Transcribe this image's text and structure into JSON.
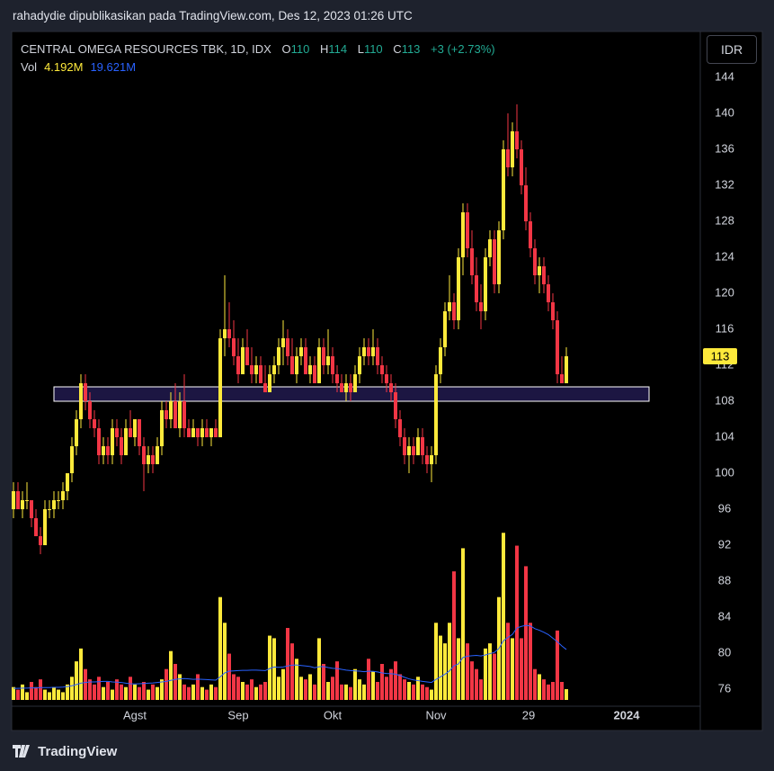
{
  "header": "rahadydie dipublikasikan pada TradingView.com, Des 12, 2023 01:26 UTC",
  "footer": "TradingView",
  "chart_data": {
    "type": "candlestick",
    "title": "CENTRAL OMEGA RESOURCES TBK, 1D, IDX",
    "ohlc_labels": [
      "O",
      "H",
      "L",
      "C"
    ],
    "change": "+3 (+2.73%)",
    "currency": "IDR",
    "up_color": "#fde93b",
    "down_color": "#f23645",
    "grid": false,
    "open": [
      96,
      98,
      96,
      97,
      97,
      95,
      93,
      92,
      96,
      96,
      97,
      97,
      98,
      100,
      103,
      106,
      110,
      108,
      106,
      105,
      102,
      103,
      102,
      105,
      104,
      102,
      105,
      104,
      106,
      103,
      101,
      102,
      101,
      103,
      107,
      106,
      108,
      105,
      108,
      105,
      104,
      105,
      104,
      105,
      104,
      105,
      104,
      115,
      116,
      115,
      113,
      111,
      114,
      112,
      111,
      112,
      110,
      109,
      111,
      112,
      114,
      115,
      113,
      111,
      113,
      114,
      111,
      112,
      110,
      114,
      112,
      113,
      111,
      110,
      109,
      110,
      109,
      111,
      113,
      114,
      113,
      114,
      112,
      111,
      110,
      109,
      106,
      104,
      102,
      103,
      102,
      104,
      102,
      101,
      102,
      111,
      114,
      118,
      119,
      117,
      124,
      129,
      125,
      122,
      119,
      118,
      124,
      126,
      121,
      127,
      136,
      134,
      138,
      136,
      132,
      128,
      125,
      122,
      123,
      121,
      119,
      117,
      111,
      110
    ],
    "high": [
      99,
      99,
      98,
      99,
      97,
      96,
      94,
      97,
      97,
      98,
      98,
      99,
      100,
      104,
      107,
      111,
      111,
      109,
      107,
      106,
      104,
      104,
      106,
      106,
      105,
      106,
      107,
      106,
      106,
      104,
      103,
      103,
      104,
      108,
      108,
      109,
      110,
      109,
      111,
      106,
      106,
      105,
      106,
      106,
      105,
      106,
      116,
      122,
      119,
      117,
      115,
      115,
      116,
      114,
      113,
      113,
      112,
      112,
      113,
      115,
      117,
      116,
      115,
      114,
      115,
      115,
      113,
      113,
      115,
      115,
      116,
      114,
      112,
      111,
      111,
      111,
      112,
      114,
      115,
      115,
      116,
      115,
      113,
      112,
      111,
      110,
      107,
      105,
      104,
      104,
      105,
      105,
      103,
      103,
      112,
      115,
      119,
      122,
      120,
      125,
      130,
      130,
      127,
      124,
      121,
      125,
      127,
      127,
      128,
      137,
      140,
      139,
      141,
      137,
      134,
      129,
      126,
      124,
      124,
      122,
      120,
      118,
      113,
      114
    ],
    "low": [
      95,
      96,
      95,
      96,
      94,
      93,
      91,
      92,
      95,
      95,
      96,
      96,
      97,
      99,
      102,
      105,
      107,
      105,
      104,
      101,
      101,
      101,
      101,
      103,
      101,
      102,
      104,
      103,
      102,
      98,
      100,
      100,
      101,
      102,
      105,
      105,
      105,
      104,
      104,
      104,
      104,
      103,
      103,
      104,
      103,
      104,
      104,
      113,
      114,
      112,
      110,
      111,
      112,
      110,
      110,
      110,
      109,
      109,
      110,
      111,
      112,
      112,
      111,
      110,
      112,
      111,
      110,
      110,
      110,
      111,
      111,
      110,
      109,
      109,
      108,
      108,
      109,
      110,
      112,
      112,
      112,
      111,
      110,
      109,
      108,
      105,
      103,
      101,
      100,
      101,
      102,
      101,
      100,
      99,
      101,
      110,
      113,
      117,
      116,
      116,
      122,
      124,
      121,
      118,
      116,
      117,
      123,
      120,
      120,
      126,
      133,
      133,
      135,
      131,
      127,
      124,
      121,
      120,
      120,
      118,
      116,
      110,
      110,
      110
    ],
    "close": [
      98,
      96,
      97,
      97,
      95,
      93,
      92,
      96,
      96,
      97,
      97,
      98,
      100,
      103,
      106,
      110,
      108,
      106,
      105,
      102,
      103,
      102,
      105,
      104,
      102,
      105,
      104,
      106,
      103,
      101,
      102,
      101,
      103,
      107,
      106,
      108,
      105,
      108,
      105,
      104,
      105,
      104,
      105,
      104,
      105,
      104,
      115,
      116,
      115,
      113,
      111,
      114,
      112,
      111,
      112,
      110,
      109,
      111,
      112,
      114,
      115,
      113,
      111,
      113,
      114,
      111,
      112,
      110,
      114,
      112,
      113,
      111,
      110,
      109,
      110,
      109,
      111,
      113,
      114,
      113,
      114,
      112,
      111,
      110,
      109,
      106,
      104,
      102,
      103,
      102,
      104,
      102,
      101,
      102,
      111,
      114,
      118,
      119,
      117,
      124,
      129,
      125,
      122,
      119,
      118,
      124,
      126,
      121,
      127,
      136,
      134,
      138,
      136,
      132,
      128,
      125,
      122,
      123,
      121,
      119,
      117,
      111,
      110,
      113
    ],
    "volume": {
      "name": "Vol",
      "values": [
        5,
        4,
        6,
        3,
        7,
        5,
        8,
        4,
        3,
        5,
        4,
        3,
        6,
        9,
        15,
        20,
        12,
        8,
        6,
        9,
        5,
        7,
        4,
        8,
        6,
        5,
        9,
        6,
        5,
        7,
        4,
        6,
        5,
        8,
        12,
        19,
        14,
        10,
        6,
        5,
        6,
        10,
        5,
        4,
        6,
        5,
        40,
        30,
        18,
        10,
        9,
        7,
        6,
        8,
        5,
        6,
        7,
        25,
        24,
        9,
        12,
        28,
        22,
        16,
        9,
        8,
        10,
        6,
        24,
        14,
        7,
        9,
        15,
        6,
        6,
        5,
        12,
        8,
        6,
        16,
        11,
        7,
        14,
        9,
        12,
        15,
        10,
        8,
        7,
        6,
        9,
        6,
        5,
        4,
        30,
        25,
        22,
        30,
        50,
        24,
        59,
        22,
        15,
        12,
        8,
        20,
        22,
        18,
        40,
        65,
        30,
        24,
        60,
        24,
        52,
        30,
        12,
        10,
        8,
        6,
        7,
        27,
        7,
        4.192
      ],
      "last_label": "4.192M",
      "ma_values": [
        4.5,
        4.5,
        4.6,
        4.6,
        4.7,
        4.7,
        4.8,
        4.8,
        4.8,
        4.9,
        4.9,
        5,
        5.2,
        5.5,
        6,
        6.5,
        6.8,
        7,
        7,
        7.1,
        7.2,
        7.2,
        7,
        6.9,
        6.8,
        6.5,
        6.3,
        6.2,
        6.3,
        6.4,
        6.5,
        6.6,
        6.8,
        7,
        7.2,
        7.6,
        8,
        8.2,
        8.3,
        8.2,
        8,
        8.1,
        8,
        7.9,
        7.8,
        7.7,
        9,
        10.5,
        11.2,
        11.3,
        11.4,
        11.5,
        11.5,
        11.6,
        11.6,
        11.5,
        11.4,
        12.2,
        12.8,
        12.7,
        12.8,
        13.2,
        13.5,
        13.6,
        13.4,
        13.2,
        13,
        12.5,
        12.9,
        13,
        12.6,
        12.3,
        12.2,
        11.9,
        11.6,
        11.4,
        11.3,
        11.2,
        11,
        11.2,
        11.1,
        10.9,
        10.5,
        10.3,
        10.2,
        10,
        9.5,
        8.8,
        8.2,
        7.8,
        7.5,
        7.2,
        7,
        6.8,
        8,
        9,
        10,
        11.3,
        13.3,
        14,
        16.5,
        17,
        17.2,
        17.3,
        17.1,
        17.5,
        18,
        18.5,
        20,
        23,
        24.3,
        25.5,
        28,
        28.6,
        29,
        28.8,
        27.7,
        27.1,
        26.3,
        25.4,
        24,
        22.6,
        21,
        19.621
      ],
      "ma_last_label": "19.621M",
      "ma_color": "#2962ff"
    },
    "vlim": [
      0,
      260
    ],
    "ylim": [
      74.8,
      149.1
    ],
    "yticks": [
      76,
      80,
      84,
      88,
      92,
      96,
      100,
      104,
      108,
      112,
      116,
      120,
      124,
      128,
      132,
      136,
      140,
      144
    ],
    "xlim": [
      -0.4,
      152.8
    ],
    "xticks": [
      {
        "value": 27,
        "label": "Agst"
      },
      {
        "value": 50,
        "label": "Sep"
      },
      {
        "value": 71,
        "label": "Okt"
      },
      {
        "value": 94,
        "label": "Nov"
      },
      {
        "value": 114.6,
        "label": "29"
      },
      {
        "value": 136.4,
        "label": "2024"
      }
    ],
    "zone": {
      "low": 108,
      "high": 109.6,
      "color": "#1c1642"
    }
  }
}
